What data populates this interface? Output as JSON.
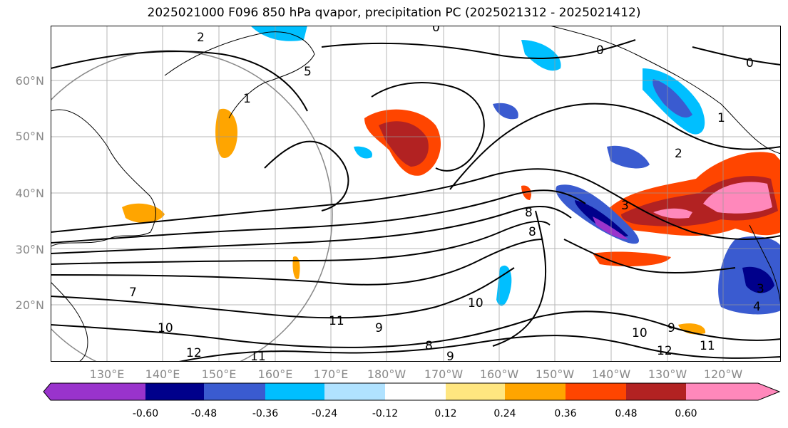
{
  "title": "2025021000 F096 850 hPa qvapor, precipitation PC (2025021312 - 2025021412)",
  "lat_labels": [
    "60°N",
    "50°N",
    "40°N",
    "30°N",
    "20°N"
  ],
  "lon_labels": [
    "130°E",
    "140°E",
    "150°E",
    "160°E",
    "170°E",
    "180°W",
    "170°W",
    "160°W",
    "150°W",
    "140°W",
    "130°W",
    "120°W"
  ],
  "colorbar": {
    "ticks": [
      "-0.60",
      "-0.48",
      "-0.36",
      "-0.24",
      "-0.12",
      "0.12",
      "0.24",
      "0.36",
      "0.48",
      "0.60"
    ],
    "colors": [
      "#9933cc",
      "#00008b",
      "#3a5bd0",
      "#00bfff",
      "#b0e2ff",
      "#ffffff",
      "#ffe680",
      "#ffa500",
      "#ff4500",
      "#b22222",
      "#ff88bb"
    ]
  },
  "contour_labels": [
    "2",
    "0",
    "0",
    "0",
    "1",
    "1",
    "2",
    "5",
    "3",
    "8",
    "8",
    "7",
    "11",
    "10",
    "12",
    "11",
    "9",
    "10",
    "9",
    "10",
    "12",
    "11",
    "9",
    "4",
    "8",
    "3"
  ]
}
